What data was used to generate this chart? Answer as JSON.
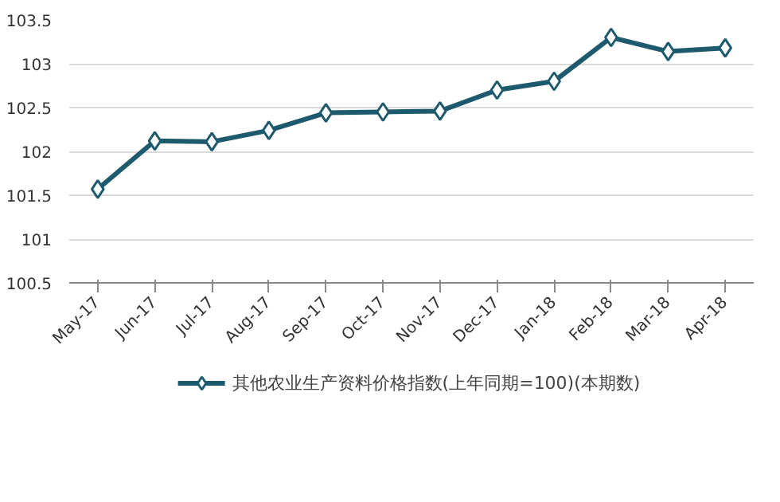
{
  "chart_data": {
    "type": "line",
    "categories": [
      "May-17",
      "Jun-17",
      "Jul-17",
      "Aug-17",
      "Sep-17",
      "Oct-17",
      "Nov-17",
      "Dec-17",
      "Jan-18",
      "Feb-18",
      "Mar-18",
      "Apr-18"
    ],
    "series": [
      {
        "name": "其他农业生产资料价格指数(上年同期=100)(本期数)",
        "color": "#1e5a6e",
        "values": [
          101.57,
          102.12,
          102.11,
          102.24,
          102.44,
          102.45,
          102.46,
          102.7,
          102.8,
          103.3,
          103.14,
          103.18
        ]
      }
    ],
    "ylim": [
      100.5,
      103.5
    ],
    "yticks": [
      100.5,
      101,
      101.5,
      102,
      102.5,
      103,
      103.5
    ],
    "grid": "y",
    "legend": "bottom",
    "marker": "diamond",
    "line_style": "solid"
  }
}
